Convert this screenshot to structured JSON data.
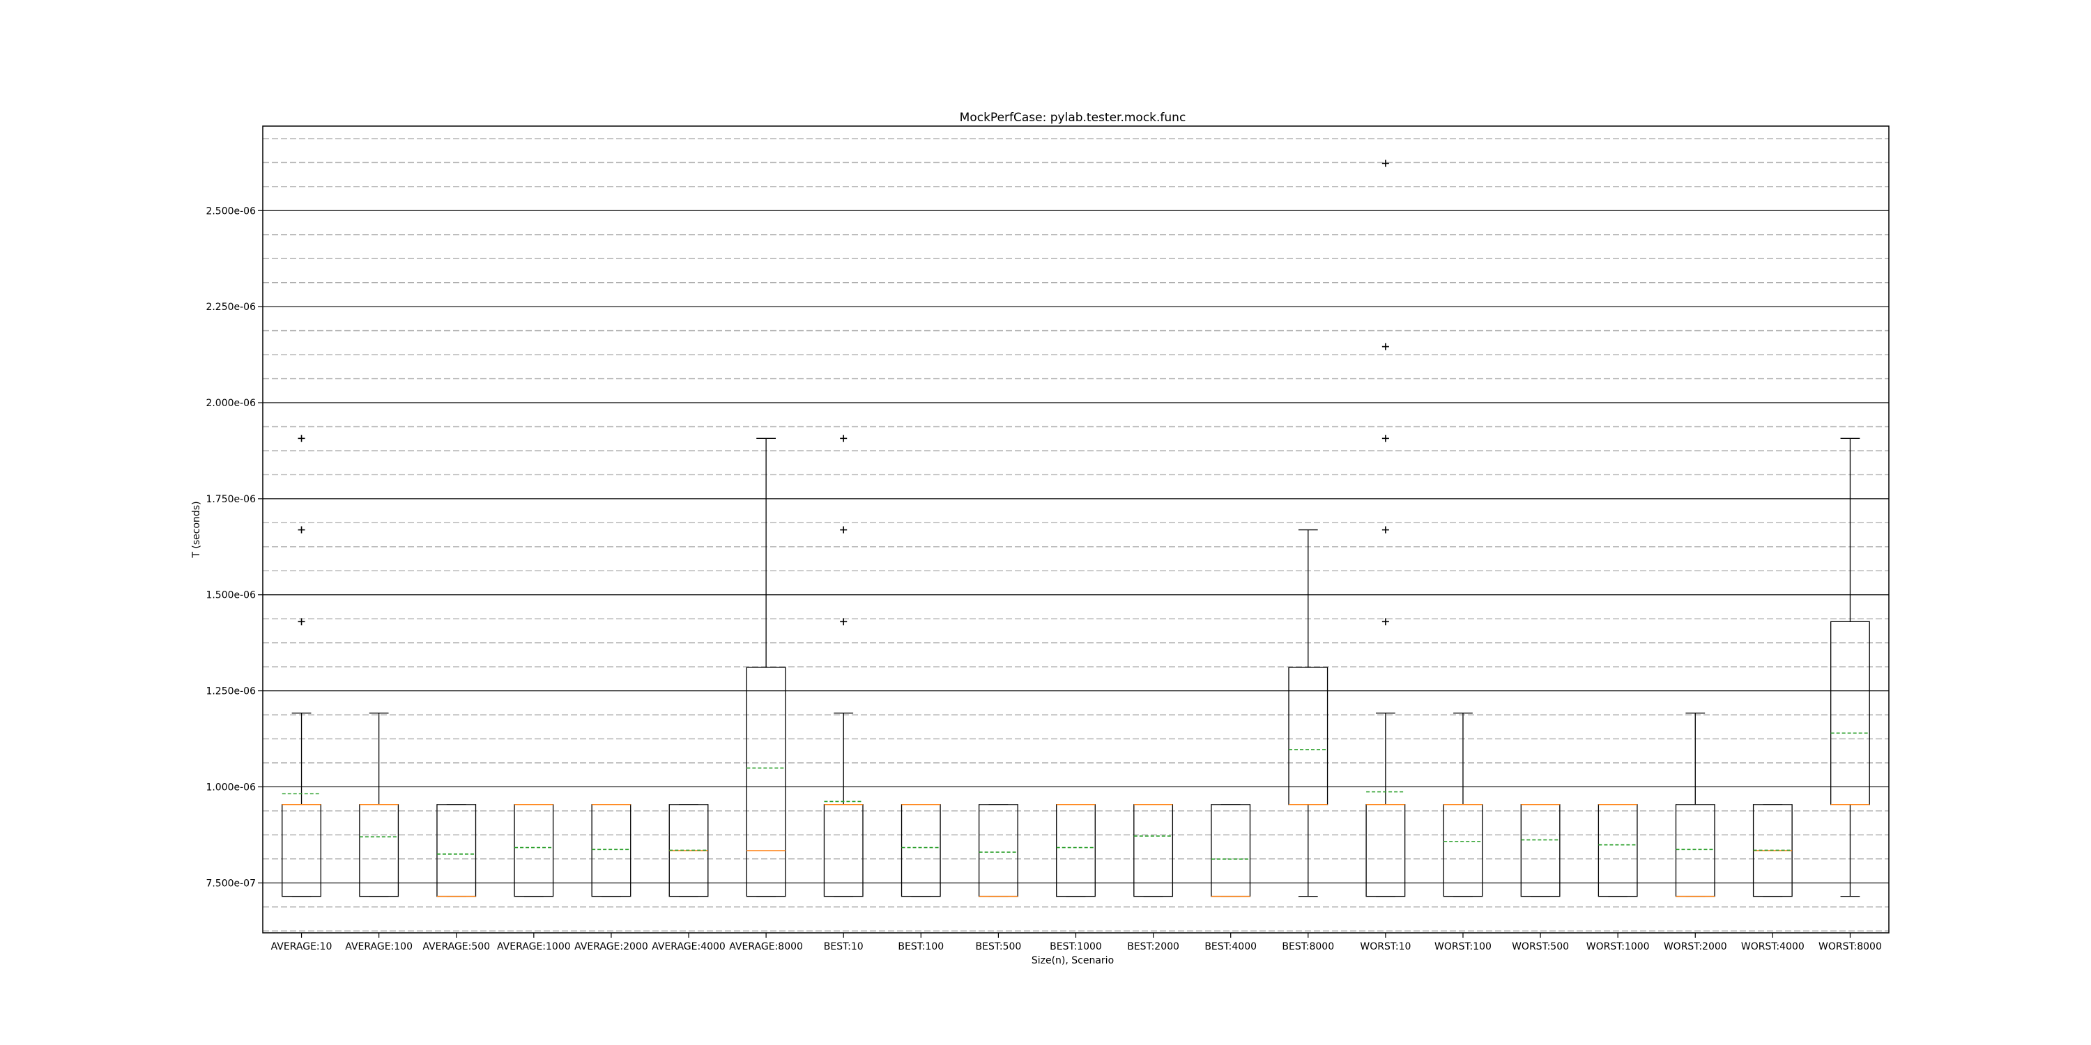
{
  "chart_data": {
    "type": "box",
    "title": "MockPerfCase: pylab.tester.mock.func",
    "xlabel": "Size(n), Scenario",
    "ylabel": "T (seconds)",
    "ylim": [
      6.2e-07,
      2.72e-06
    ],
    "y_major_ticks": [
      7.5e-07,
      1e-06,
      1.25e-06,
      1.5e-06,
      1.75e-06,
      2e-06,
      2.25e-06,
      2.5e-06
    ],
    "y_tick_labels": [
      "7.500e-07",
      "1.000e-06",
      "1.250e-06",
      "1.500e-06",
      "1.750e-06",
      "2.000e-06",
      "2.250e-06",
      "2.500e-06"
    ],
    "y_minor_step": 6.25e-08,
    "grid": {
      "major": "solid",
      "minor": "dashed"
    },
    "colors": {
      "box": "#000000",
      "median": "#ff7f0e",
      "mean": "#2ca02c",
      "grid_major": "#000000",
      "grid_minor": "#b0b0b0"
    },
    "categories": [
      "AVERAGE:10",
      "AVERAGE:100",
      "AVERAGE:500",
      "AVERAGE:1000",
      "AVERAGE:2000",
      "AVERAGE:4000",
      "AVERAGE:8000",
      "BEST:10",
      "BEST:100",
      "BEST:500",
      "BEST:1000",
      "BEST:2000",
      "BEST:4000",
      "BEST:8000",
      "WORST:10",
      "WORST:100",
      "WORST:500",
      "WORST:1000",
      "WORST:2000",
      "WORST:4000",
      "WORST:8000"
    ],
    "boxes": [
      {
        "whislo": 7.15e-07,
        "q1": 7.15e-07,
        "med": 9.54e-07,
        "q3": 9.54e-07,
        "whishi": 1.192e-06,
        "mean": 9.82e-07,
        "fliers": [
          1.43e-06,
          1.669e-06,
          1.907e-06
        ]
      },
      {
        "whislo": 7.15e-07,
        "q1": 7.15e-07,
        "med": 9.54e-07,
        "q3": 9.54e-07,
        "whishi": 1.192e-06,
        "mean": 8.7e-07,
        "fliers": []
      },
      {
        "whislo": 7.15e-07,
        "q1": 7.15e-07,
        "med": 7.15e-07,
        "q3": 9.54e-07,
        "whishi": 9.54e-07,
        "mean": 8.25e-07,
        "fliers": []
      },
      {
        "whislo": 7.15e-07,
        "q1": 7.15e-07,
        "med": 9.54e-07,
        "q3": 9.54e-07,
        "whishi": 9.54e-07,
        "mean": 8.42e-07,
        "fliers": []
      },
      {
        "whislo": 7.15e-07,
        "q1": 7.15e-07,
        "med": 9.54e-07,
        "q3": 9.54e-07,
        "whishi": 9.54e-07,
        "mean": 8.37e-07,
        "fliers": []
      },
      {
        "whislo": 7.15e-07,
        "q1": 7.15e-07,
        "med": 8.34e-07,
        "q3": 9.54e-07,
        "whishi": 9.54e-07,
        "mean": 8.35e-07,
        "fliers": []
      },
      {
        "whislo": 7.15e-07,
        "q1": 7.15e-07,
        "med": 8.34e-07,
        "q3": 1.311e-06,
        "whishi": 1.907e-06,
        "mean": 1.049e-06,
        "fliers": []
      },
      {
        "whislo": 7.15e-07,
        "q1": 7.15e-07,
        "med": 9.54e-07,
        "q3": 9.54e-07,
        "whishi": 1.192e-06,
        "mean": 9.62e-07,
        "fliers": [
          1.43e-06,
          1.669e-06,
          1.907e-06
        ]
      },
      {
        "whislo": 7.15e-07,
        "q1": 7.15e-07,
        "med": 9.54e-07,
        "q3": 9.54e-07,
        "whishi": 9.54e-07,
        "mean": 8.42e-07,
        "fliers": []
      },
      {
        "whislo": 7.15e-07,
        "q1": 7.15e-07,
        "med": 7.15e-07,
        "q3": 9.54e-07,
        "whishi": 9.54e-07,
        "mean": 8.3e-07,
        "fliers": []
      },
      {
        "whislo": 7.15e-07,
        "q1": 7.15e-07,
        "med": 9.54e-07,
        "q3": 9.54e-07,
        "whishi": 9.54e-07,
        "mean": 8.42e-07,
        "fliers": []
      },
      {
        "whislo": 7.15e-07,
        "q1": 7.15e-07,
        "med": 9.54e-07,
        "q3": 9.54e-07,
        "whishi": 9.54e-07,
        "mean": 8.72e-07,
        "fliers": []
      },
      {
        "whislo": 7.15e-07,
        "q1": 7.15e-07,
        "med": 7.15e-07,
        "q3": 9.54e-07,
        "whishi": 9.54e-07,
        "mean": 8.12e-07,
        "fliers": []
      },
      {
        "whislo": 7.15e-07,
        "q1": 9.54e-07,
        "med": 9.54e-07,
        "q3": 1.311e-06,
        "whishi": 1.669e-06,
        "mean": 1.097e-06,
        "fliers": []
      },
      {
        "whislo": 7.15e-07,
        "q1": 7.15e-07,
        "med": 9.54e-07,
        "q3": 9.54e-07,
        "whishi": 1.192e-06,
        "mean": 9.87e-07,
        "fliers": [
          1.43e-06,
          1.669e-06,
          1.907e-06,
          2.146e-06,
          2.623e-06
        ]
      },
      {
        "whislo": 7.15e-07,
        "q1": 7.15e-07,
        "med": 9.54e-07,
        "q3": 9.54e-07,
        "whishi": 1.192e-06,
        "mean": 8.58e-07,
        "fliers": []
      },
      {
        "whislo": 7.15e-07,
        "q1": 7.15e-07,
        "med": 9.54e-07,
        "q3": 9.54e-07,
        "whishi": 9.54e-07,
        "mean": 8.62e-07,
        "fliers": []
      },
      {
        "whislo": 7.15e-07,
        "q1": 7.15e-07,
        "med": 9.54e-07,
        "q3": 9.54e-07,
        "whishi": 9.54e-07,
        "mean": 8.49e-07,
        "fliers": []
      },
      {
        "whislo": 7.15e-07,
        "q1": 7.15e-07,
        "med": 7.15e-07,
        "q3": 9.54e-07,
        "whishi": 1.192e-06,
        "mean": 8.37e-07,
        "fliers": []
      },
      {
        "whislo": 7.15e-07,
        "q1": 7.15e-07,
        "med": 8.34e-07,
        "q3": 9.54e-07,
        "whishi": 9.54e-07,
        "mean": 8.35e-07,
        "fliers": []
      },
      {
        "whislo": 7.15e-07,
        "q1": 9.54e-07,
        "med": 9.54e-07,
        "q3": 1.43e-06,
        "whishi": 1.907e-06,
        "mean": 1.14e-06,
        "fliers": []
      }
    ]
  }
}
